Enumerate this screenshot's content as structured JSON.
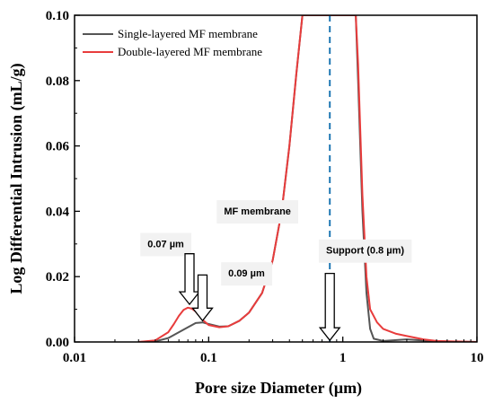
{
  "chart_data": {
    "type": "line",
    "xlabel": "Pore size Diameter (µm)",
    "ylabel": "Log Differential Intrusion (mL/g)",
    "xscale": "log",
    "xlim": [
      0.01,
      10
    ],
    "ylim": [
      0,
      0.1
    ],
    "x_ticks": [
      0.01,
      0.1,
      1,
      10
    ],
    "x_tick_labels": [
      "0.01",
      "0.1",
      "1",
      "10"
    ],
    "y_ticks": [
      0,
      0.02,
      0.04,
      0.06,
      0.08,
      0.1
    ],
    "y_tick_labels": [
      "0.00",
      "0.02",
      "0.04",
      "0.06",
      "0.08",
      "0.10"
    ],
    "legend_position": "top-left",
    "series": [
      {
        "name": "Single-layered MF membrane",
        "color": "#555555",
        "x": [
          0.03,
          0.04,
          0.05,
          0.06,
          0.07,
          0.08,
          0.09,
          0.1,
          0.12,
          0.14,
          0.17,
          0.2,
          0.25,
          0.3,
          0.35,
          0.4,
          0.45,
          0.5,
          0.55,
          1.25,
          1.3,
          1.4,
          1.5,
          1.6,
          1.7,
          2,
          3,
          5,
          10
        ],
        "y": [
          0,
          0.0002,
          0.0012,
          0.003,
          0.0045,
          0.0058,
          0.006,
          0.0055,
          0.0047,
          0.0048,
          0.0065,
          0.009,
          0.015,
          0.025,
          0.04,
          0.06,
          0.082,
          0.1,
          0.1,
          0.1,
          0.08,
          0.04,
          0.015,
          0.004,
          0.001,
          0.0003,
          0.0008,
          0.0002,
          0
        ]
      },
      {
        "name": "Double-layered MF membrane",
        "color": "#e83c3c",
        "x": [
          0.03,
          0.04,
          0.05,
          0.055,
          0.06,
          0.065,
          0.07,
          0.075,
          0.08,
          0.09,
          0.1,
          0.12,
          0.14,
          0.17,
          0.2,
          0.25,
          0.3,
          0.35,
          0.4,
          0.45,
          0.5,
          0.55,
          1.25,
          1.3,
          1.4,
          1.5,
          1.6,
          1.8,
          2,
          2.5,
          3,
          4,
          5,
          10
        ],
        "y": [
          0,
          0.0005,
          0.003,
          0.0055,
          0.008,
          0.0098,
          0.0105,
          0.0102,
          0.0093,
          0.0068,
          0.0052,
          0.0045,
          0.0048,
          0.0065,
          0.009,
          0.015,
          0.025,
          0.04,
          0.06,
          0.082,
          0.1,
          0.1,
          0.1,
          0.085,
          0.045,
          0.02,
          0.01,
          0.006,
          0.004,
          0.0025,
          0.0018,
          0.0008,
          0.0003,
          0
        ]
      }
    ],
    "reference_line": {
      "x": 0.8,
      "color": "#1f78b4",
      "style": "dashed"
    },
    "annotations": [
      {
        "text": "MF membrane",
        "x": 0.13,
        "y": 0.039
      },
      {
        "text": "0.07 µm",
        "x": 0.035,
        "y": 0.029
      },
      {
        "text": "0.09 µm",
        "x": 0.14,
        "y": 0.02
      },
      {
        "text": "Support (0.8 µm)",
        "x": 0.75,
        "y": 0.027
      }
    ],
    "arrows": [
      {
        "x": 0.072,
        "y_from": 0.027,
        "y_to": 0.0115
      },
      {
        "x": 0.09,
        "y_from": 0.0205,
        "y_to": 0.0065
      },
      {
        "x": 0.8,
        "y_from": 0.021,
        "y_to": 0.0005
      }
    ]
  }
}
